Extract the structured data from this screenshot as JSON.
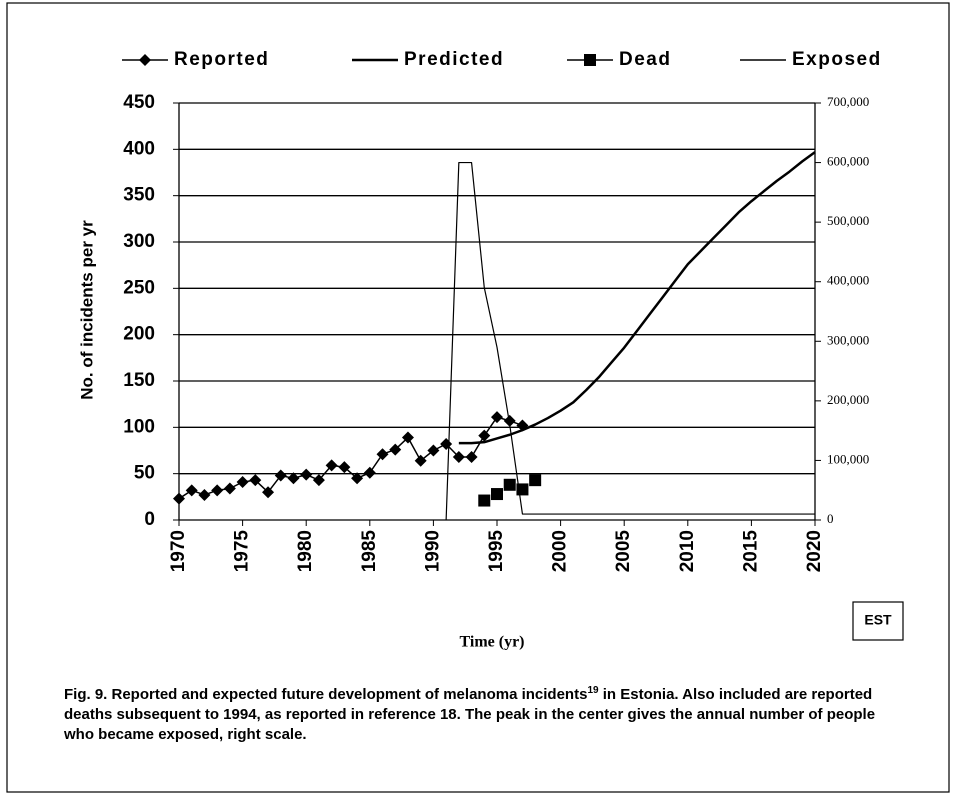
{
  "chart_data": {
    "type": "line",
    "x_label": "Time (yr)",
    "y_label": "No. of incidents per yr",
    "tag": "EST",
    "xlim": [
      1970,
      2020
    ],
    "xticks": [
      1970,
      1975,
      1980,
      1985,
      1990,
      1995,
      2000,
      2005,
      2010,
      2015,
      2020
    ],
    "ylim": [
      0,
      450
    ],
    "yticks": [
      0,
      50,
      100,
      150,
      200,
      250,
      300,
      350,
      400,
      450
    ],
    "y2lim": [
      0,
      700000
    ],
    "y2ticks": [
      0,
      {
        "value": 100000,
        "label": "100,000"
      },
      {
        "value": 200000,
        "label": "200,000"
      },
      {
        "value": 300000,
        "label": "300,000"
      },
      {
        "value": 400000,
        "label": "400,000"
      },
      {
        "value": 500000,
        "label": "500,000"
      },
      {
        "value": 600000,
        "label": "600,000"
      },
      {
        "value": 700000,
        "label": "700,000"
      }
    ],
    "grid": true,
    "legend": "top",
    "series": [
      {
        "name": "Reported",
        "color": "#000000",
        "marker": "diamond",
        "line_width": 1.5,
        "x": [
          1970,
          1971,
          1972,
          1973,
          1974,
          1975,
          1976,
          1977,
          1978,
          1979,
          1980,
          1981,
          1982,
          1983,
          1984,
          1985,
          1986,
          1987,
          1988,
          1989,
          1990,
          1991,
          1992,
          1993,
          1994,
          1995,
          1996,
          1997
        ],
        "values": [
          23,
          32,
          27,
          32,
          34,
          41,
          43,
          30,
          48,
          45,
          49,
          43,
          59,
          57,
          45,
          51,
          71,
          76,
          89,
          64,
          75,
          82,
          68,
          68,
          91,
          111,
          107,
          102
        ]
      },
      {
        "name": "Predicted",
        "color": "#000000",
        "line_width": 2.5,
        "x": [
          1992,
          1993,
          1994,
          1995,
          1996,
          1997,
          1998,
          1999,
          2000,
          2001,
          2002,
          2003,
          2004,
          2005,
          2006,
          2007,
          2008,
          2009,
          2010,
          2011,
          2012,
          2013,
          2014,
          2015,
          2016,
          2017,
          2018,
          2019,
          2020
        ],
        "values": [
          83,
          83,
          84,
          88,
          92,
          97,
          103,
          110,
          118,
          127,
          140,
          154,
          170,
          186,
          204,
          222,
          240,
          258,
          276,
          290,
          304,
          318,
          332,
          344,
          355,
          366,
          376,
          387,
          397
        ]
      },
      {
        "name": "Dead",
        "color": "#000000",
        "marker": "square",
        "line_width": 0,
        "x": [
          1994,
          1995,
          1996,
          1997,
          1998
        ],
        "values": [
          21,
          28,
          38,
          33,
          43
        ]
      },
      {
        "name": "Exposed",
        "color": "#000000",
        "line_width": 1.2,
        "axis": "y2",
        "x": [
          1991,
          1992,
          1993,
          1994,
          1995,
          1996,
          1997,
          2020
        ],
        "values": [
          0,
          600000,
          600000,
          390000,
          290000,
          160000,
          10000,
          10000
        ]
      }
    ],
    "caption": [
      "Fig. 9. Reported and expected future development of melanoma incidents",
      "19",
      " in Estonia. Also included are reported deaths subsequent to 1994, as reported in reference 18. The peak in the center gives the annual number of people who became exposed, right scale."
    ]
  }
}
